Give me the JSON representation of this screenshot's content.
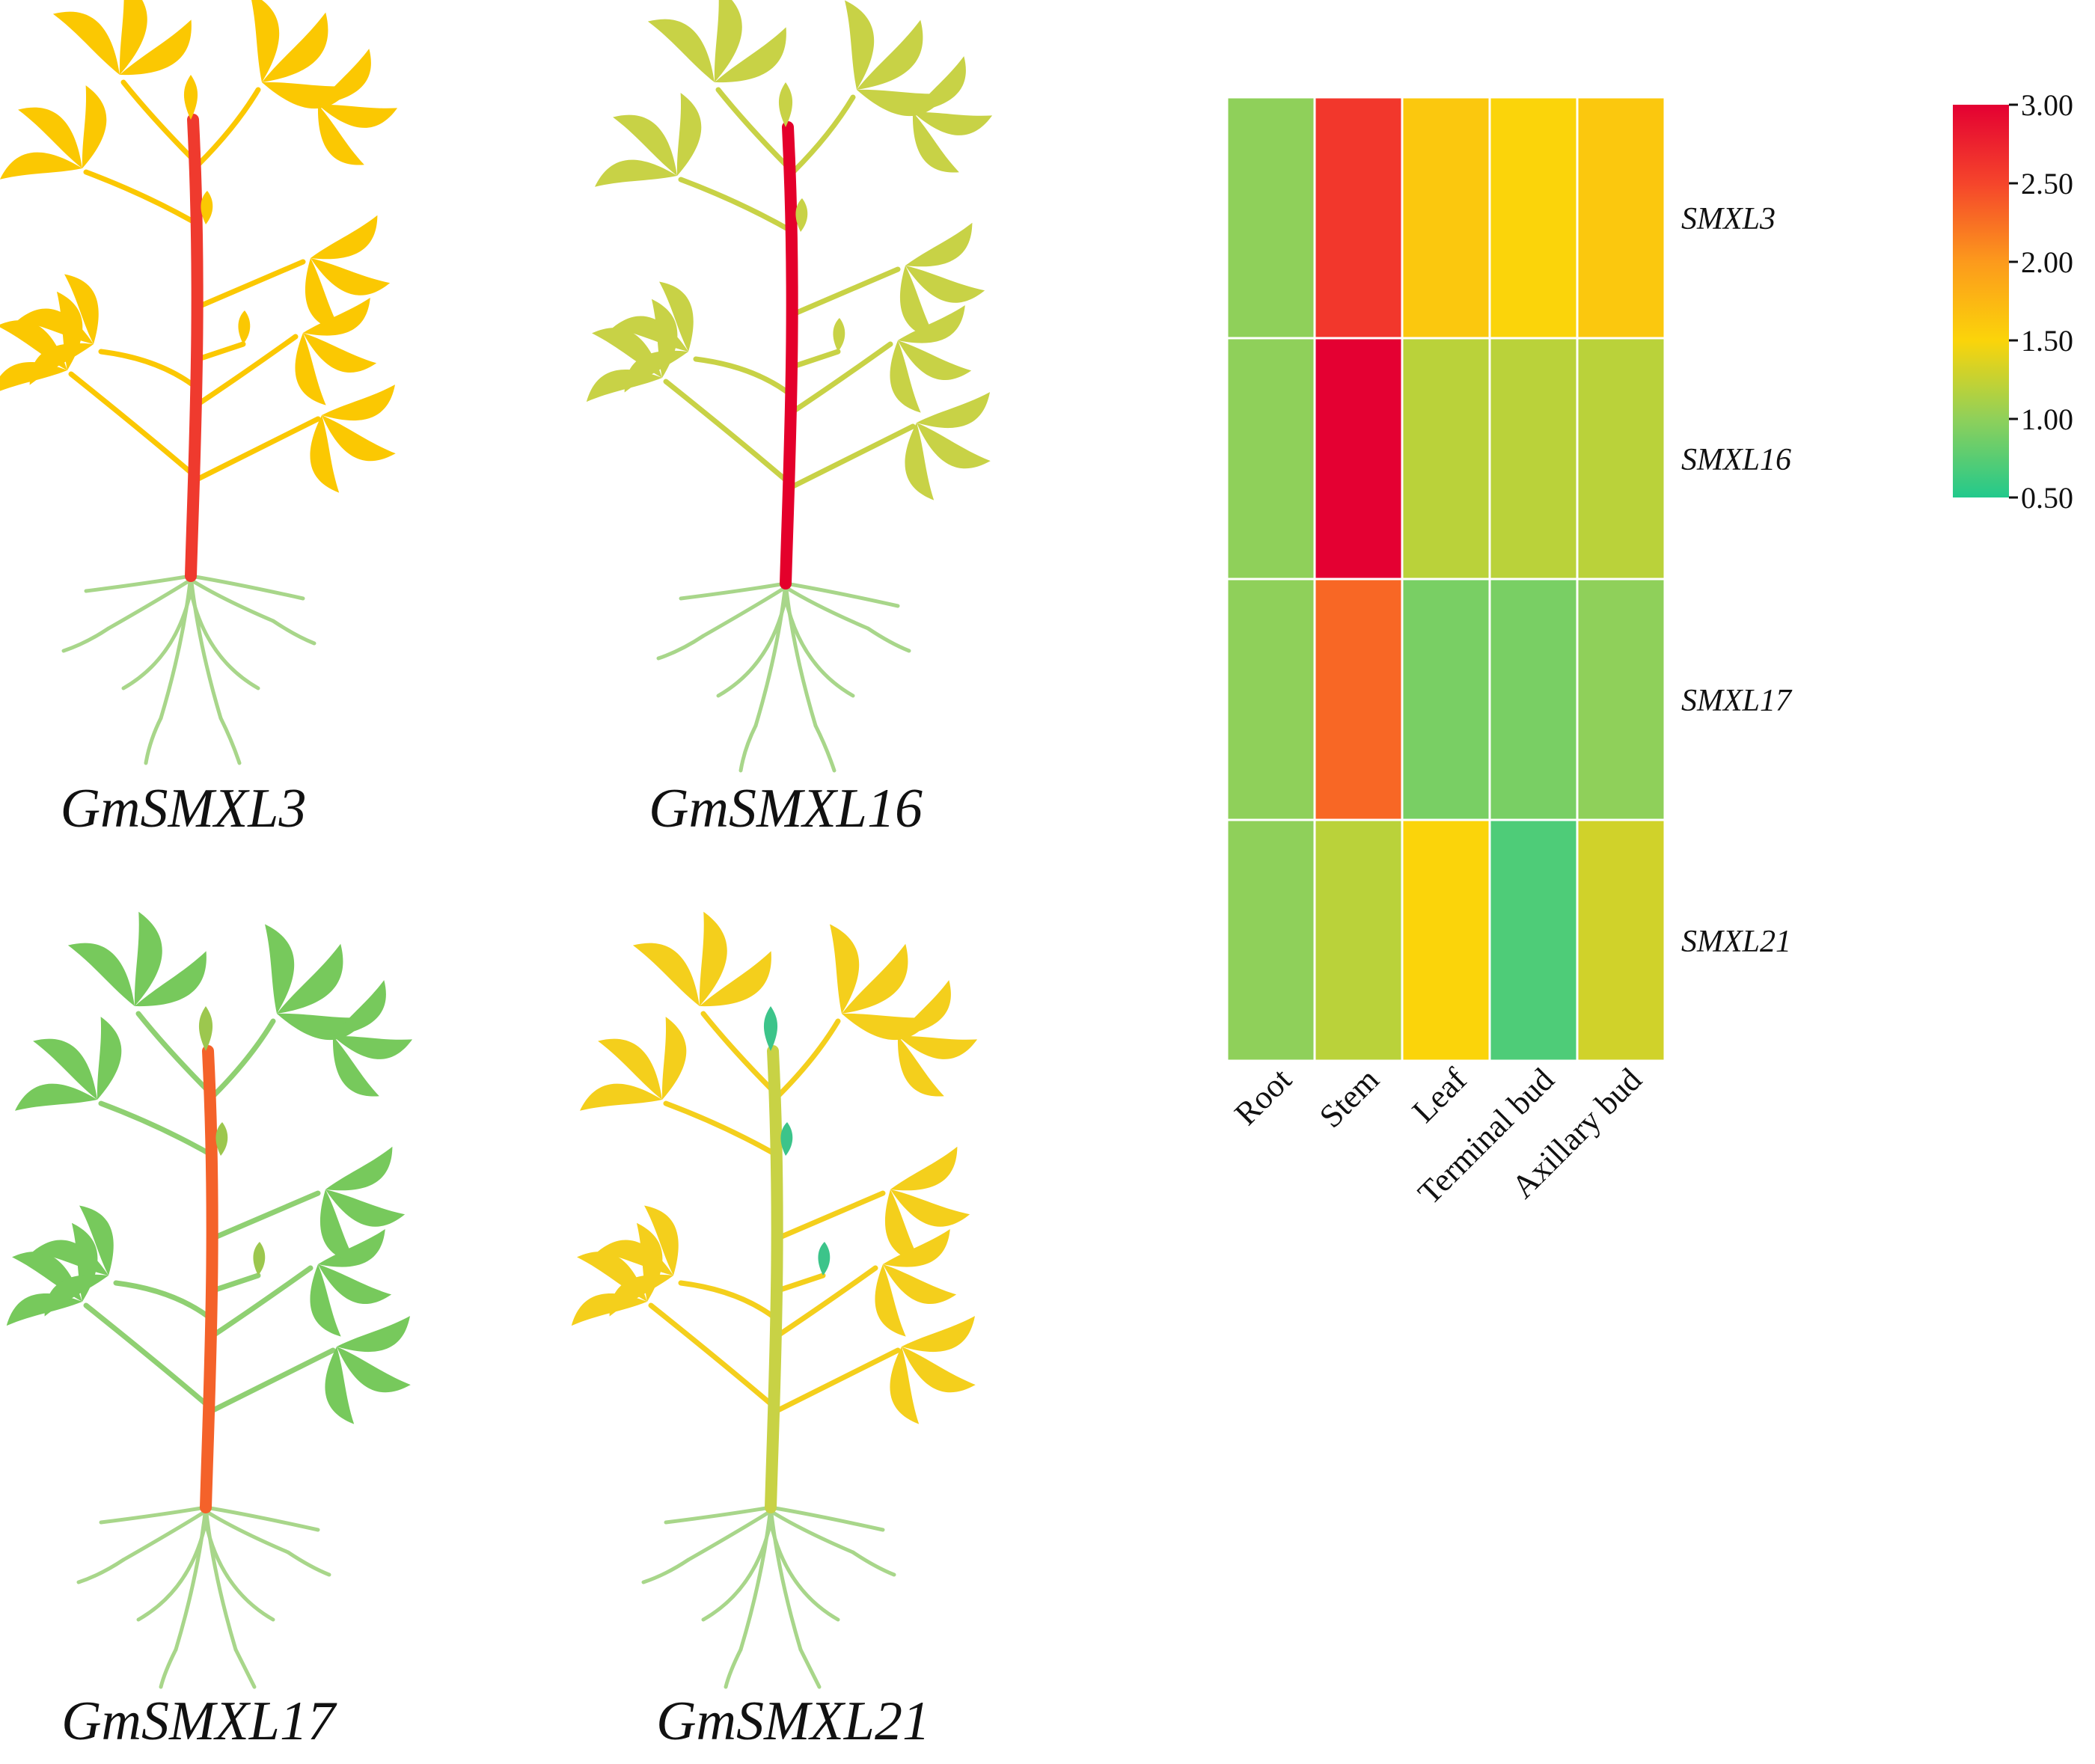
{
  "colors": {
    "root_green": "#a8d68a",
    "stem_default": "#c8d245"
  },
  "plants": [
    {
      "label": "GmSMXL3",
      "leaf": "#fbc802",
      "branch": "#fbc802",
      "stem": "#ef3a2e",
      "shoot": "#fbc802",
      "root": "#a8d68a"
    },
    {
      "label": "GmSMXL16",
      "leaf": "#c8d246",
      "branch": "#c8d246",
      "stem": "#e4002b",
      "shoot": "#c8d246",
      "root": "#a8d68a"
    },
    {
      "label": "GmSMXL17",
      "leaf": "#77c95c",
      "branch": "#8fd072",
      "stem": "#f4622a",
      "shoot": "#9cc74e",
      "root": "#a8d68a"
    },
    {
      "label": "GmSMXL21",
      "leaf": "#f4cf1c",
      "branch": "#f4cf1c",
      "stem": "#c8d245",
      "shoot": "#3cc48a",
      "root": "#a8d68a"
    }
  ],
  "chart_data": {
    "type": "heatmap",
    "title": "",
    "columns": [
      "Root",
      "Stem",
      "Leaf",
      "Terminal bud",
      "Axillary bud"
    ],
    "rows": [
      "SMXL3",
      "SMXL16",
      "SMXL17",
      "SMXL21"
    ],
    "values": [
      [
        1.0,
        2.6,
        1.6,
        1.5,
        1.6
      ],
      [
        1.0,
        3.0,
        1.2,
        1.2,
        1.2
      ],
      [
        1.0,
        2.3,
        0.9,
        0.9,
        1.0
      ],
      [
        1.0,
        1.2,
        1.5,
        0.7,
        1.3
      ]
    ],
    "colorbar": {
      "min": 0.5,
      "max": 3.0,
      "ticks": [
        "3.00",
        "2.50",
        "2.00",
        "1.50",
        "1.00",
        "0.50"
      ],
      "stops": [
        {
          "value": 0.5,
          "color": "#22c98c"
        },
        {
          "value": 1.0,
          "color": "#8fd05a"
        },
        {
          "value": 1.5,
          "color": "#fbd40a"
        },
        {
          "value": 2.0,
          "color": "#fc9a1c"
        },
        {
          "value": 2.5,
          "color": "#f5452b"
        },
        {
          "value": 3.0,
          "color": "#e40032"
        }
      ]
    }
  }
}
